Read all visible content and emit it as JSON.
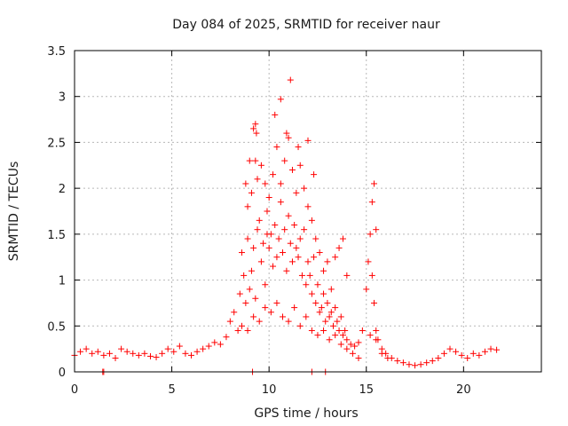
{
  "chart_data": {
    "type": "scatter",
    "title": "Day 084 of 2025, SRMTID for receiver naur",
    "xlabel": "GPS time / hours",
    "ylabel": "SRMTID / TECUs",
    "xlim": [
      0,
      24
    ],
    "ylim": [
      0,
      3.5
    ],
    "xticks": [
      0,
      5,
      10,
      15,
      20
    ],
    "xtick_labels": [
      "0",
      "5",
      "10",
      "15",
      "20"
    ],
    "yticks": [
      0,
      0.5,
      1,
      1.5,
      2,
      2.5,
      3,
      3.5
    ],
    "ytick_labels": [
      "0",
      "0.5",
      "1",
      "1.5",
      "2",
      "2.5",
      "3",
      "3.5"
    ],
    "grid": true,
    "marker": "+",
    "marker_color": "#ff0000",
    "series": [
      {
        "name": "SRMTID",
        "x": [
          0.0,
          0.3,
          0.6,
          0.9,
          1.2,
          1.5,
          1.8,
          2.1,
          2.4,
          2.7,
          3.0,
          3.3,
          3.6,
          3.9,
          4.2,
          4.5,
          4.8,
          5.1,
          5.4,
          5.7,
          6.0,
          6.3,
          6.6,
          6.9,
          7.2,
          7.5,
          7.8,
          8.0,
          8.2,
          8.4,
          8.5,
          8.6,
          8.7,
          8.8,
          8.9,
          9.0,
          9.1,
          9.2,
          9.3,
          9.4,
          9.5,
          9.6,
          9.7,
          9.8,
          9.9,
          10.0,
          10.1,
          10.2,
          10.3,
          10.4,
          10.5,
          10.6,
          10.7,
          10.8,
          10.9,
          11.0,
          11.1,
          11.2,
          11.3,
          11.4,
          11.5,
          11.6,
          11.7,
          11.8,
          11.9,
          12.0,
          12.1,
          12.2,
          12.3,
          12.4,
          12.5,
          12.6,
          12.7,
          12.8,
          12.9,
          13.0,
          13.1,
          13.2,
          13.3,
          13.4,
          13.5,
          13.6,
          13.7,
          13.8,
          13.9,
          14.0,
          14.2,
          14.4,
          14.6,
          14.8,
          15.0,
          15.1,
          15.2,
          15.3,
          15.4,
          15.5,
          15.6,
          15.8,
          16.0,
          16.3,
          16.6,
          16.9,
          17.2,
          17.5,
          17.8,
          18.1,
          18.4,
          18.7,
          19.0,
          19.3,
          19.6,
          19.9,
          20.2,
          20.5,
          20.8,
          21.1,
          21.4,
          21.7,
          8.8,
          8.9,
          9.0,
          9.1,
          9.2,
          9.3,
          9.4,
          9.6,
          9.8,
          10.0,
          10.2,
          10.4,
          10.6,
          10.8,
          11.0,
          11.2,
          11.4,
          11.6,
          11.8,
          12.0,
          12.2,
          12.4,
          12.6,
          12.8,
          13.0,
          13.2,
          13.4,
          13.6,
          13.8,
          14.0,
          15.3,
          15.4,
          15.5,
          8.6,
          8.9,
          9.2,
          9.5,
          9.8,
          10.1,
          10.4,
          10.7,
          11.0,
          11.3,
          11.6,
          11.9,
          12.2,
          12.5,
          12.8,
          13.1,
          13.4,
          13.7,
          14.0,
          14.3,
          14.6,
          15.2,
          15.5,
          15.8,
          16.1,
          9.3,
          9.35,
          9.9,
          10.3,
          10.6,
          10.9,
          11.1,
          11.5,
          12.0,
          12.3,
          9.15,
          12.2,
          12.9,
          1.45,
          1.5
        ],
        "y": [
          0.18,
          0.22,
          0.25,
          0.2,
          0.22,
          0.18,
          0.2,
          0.15,
          0.25,
          0.22,
          0.2,
          0.18,
          0.2,
          0.17,
          0.16,
          0.2,
          0.25,
          0.22,
          0.28,
          0.2,
          0.18,
          0.22,
          0.25,
          0.28,
          0.32,
          0.3,
          0.38,
          0.55,
          0.65,
          0.45,
          0.85,
          1.3,
          1.05,
          0.75,
          1.45,
          0.9,
          1.1,
          1.35,
          0.8,
          1.55,
          1.65,
          1.2,
          1.4,
          0.95,
          1.75,
          1.35,
          1.5,
          1.15,
          1.6,
          1.25,
          1.45,
          1.85,
          1.3,
          1.55,
          1.1,
          1.7,
          1.4,
          1.2,
          1.6,
          1.35,
          1.25,
          1.45,
          1.05,
          1.55,
          0.95,
          1.2,
          1.05,
          0.85,
          1.25,
          0.75,
          0.95,
          0.65,
          0.7,
          0.85,
          0.55,
          0.75,
          0.6,
          0.65,
          0.5,
          0.7,
          0.55,
          0.45,
          0.6,
          0.4,
          0.45,
          0.35,
          0.3,
          0.28,
          0.32,
          0.45,
          0.9,
          1.2,
          1.5,
          1.05,
          0.75,
          0.45,
          0.35,
          0.25,
          0.2,
          0.15,
          0.12,
          0.1,
          0.08,
          0.07,
          0.08,
          0.1,
          0.12,
          0.15,
          0.2,
          0.25,
          0.22,
          0.18,
          0.15,
          0.2,
          0.18,
          0.22,
          0.25,
          0.24,
          2.05,
          1.8,
          2.3,
          1.95,
          2.65,
          2.3,
          2.1,
          2.25,
          2.05,
          1.9,
          2.15,
          2.45,
          2.05,
          2.3,
          2.55,
          2.2,
          1.95,
          2.25,
          2.0,
          1.8,
          1.65,
          1.45,
          1.3,
          1.1,
          1.2,
          0.9,
          1.25,
          1.35,
          1.45,
          1.05,
          1.85,
          2.05,
          1.55,
          0.5,
          0.45,
          0.6,
          0.55,
          0.7,
          0.65,
          0.75,
          0.6,
          0.55,
          0.7,
          0.5,
          0.6,
          0.45,
          0.4,
          0.45,
          0.35,
          0.4,
          0.3,
          0.25,
          0.2,
          0.15,
          0.4,
          0.35,
          0.2,
          0.15,
          2.7,
          2.6,
          1.5,
          2.8,
          2.97,
          2.6,
          3.18,
          2.45,
          2.52,
          2.15,
          0.0,
          0.0,
          0.0,
          0.0,
          0.0
        ]
      }
    ]
  }
}
